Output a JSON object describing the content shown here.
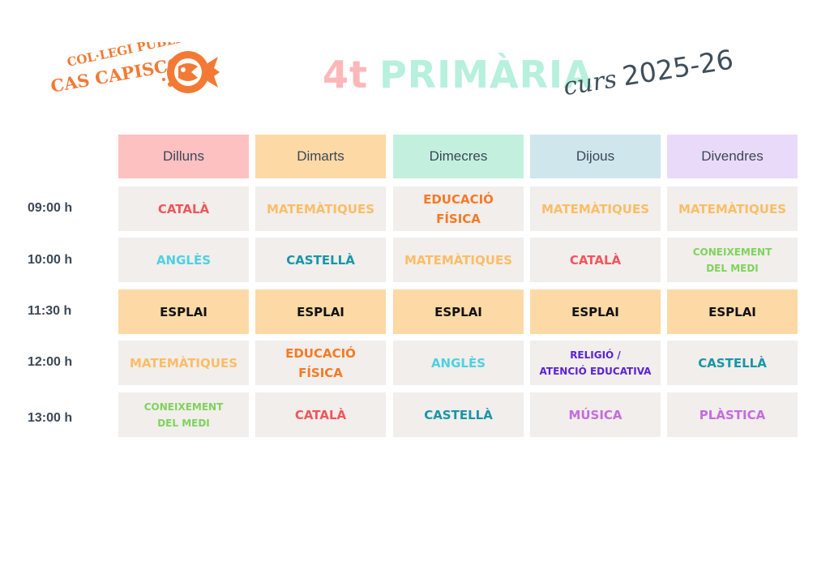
{
  "logo": {
    "line1": "COL·LEGI PÚBLIC",
    "line2": "CAS CAPISCOL"
  },
  "title": {
    "grade": "4t",
    "word": "PRIMÀRIA"
  },
  "course": {
    "curs": "curs",
    "year": "2025-26"
  },
  "days": [
    {
      "label": "Dilluns",
      "color": "#fec1c1"
    },
    {
      "label": "Dimarts",
      "color": "#fdd9a6"
    },
    {
      "label": "Dimecres",
      "color": "#c3f0de"
    },
    {
      "label": "Dijous",
      "color": "#d0e6ed"
    },
    {
      "label": "Divendres",
      "color": "#eadaf9"
    }
  ],
  "rows": [
    {
      "time": "09:00 h",
      "cells": [
        {
          "text": "CATALÀ",
          "color": "#f0555c"
        },
        {
          "text": "MATEMÀTIQUES",
          "color": "#fbbd66"
        },
        {
          "text": "EDUCACIÓ\nFÍSICA",
          "color": "#f47a26"
        },
        {
          "text": "MATEMÀTIQUES",
          "color": "#fbbd66"
        },
        {
          "text": "MATEMÀTIQUES",
          "color": "#fbbd66"
        }
      ]
    },
    {
      "time": "10:00 h",
      "cells": [
        {
          "text": "ANGLÈS",
          "color": "#4fd0e0"
        },
        {
          "text": "CASTELLÀ",
          "color": "#1896a8"
        },
        {
          "text": "MATEMÀTIQUES",
          "color": "#fbbd66"
        },
        {
          "text": "CATALÀ",
          "color": "#f0555c"
        },
        {
          "text": "CONEIXEMENT\nDEL MEDI",
          "color": "#7ed35b"
        }
      ]
    },
    {
      "time": "11:30 h",
      "cells": [
        {
          "text": "ESPLAI",
          "color": "#111111"
        },
        {
          "text": "ESPLAI",
          "color": "#111111"
        },
        {
          "text": "ESPLAI",
          "color": "#111111"
        },
        {
          "text": "ESPLAI",
          "color": "#111111"
        },
        {
          "text": "ESPLAI",
          "color": "#111111"
        }
      ]
    },
    {
      "time": "12:00 h",
      "cells": [
        {
          "text": "MATEMÀTIQUES",
          "color": "#fbbd66"
        },
        {
          "text": "EDUCACIÓ\nFÍSICA",
          "color": "#f47a26"
        },
        {
          "text": "ANGLÈS",
          "color": "#4fd0e0"
        },
        {
          "text": "RELIGIÓ /\nATENCIÓ EDUCATIVA",
          "color": "#5a22d6"
        },
        {
          "text": "CASTELLÀ",
          "color": "#1896a8"
        }
      ]
    },
    {
      "time": "13:00 h",
      "cells": [
        {
          "text": "CONEIXEMENT\nDEL MEDI",
          "color": "#7ed35b"
        },
        {
          "text": "CATALÀ",
          "color": "#f0555c"
        },
        {
          "text": "CASTELLÀ",
          "color": "#1896a8"
        },
        {
          "text": "MÚSICA",
          "color": "#c56ce0"
        },
        {
          "text": "PLÀSTICA",
          "color": "#c56ce0"
        }
      ]
    }
  ]
}
